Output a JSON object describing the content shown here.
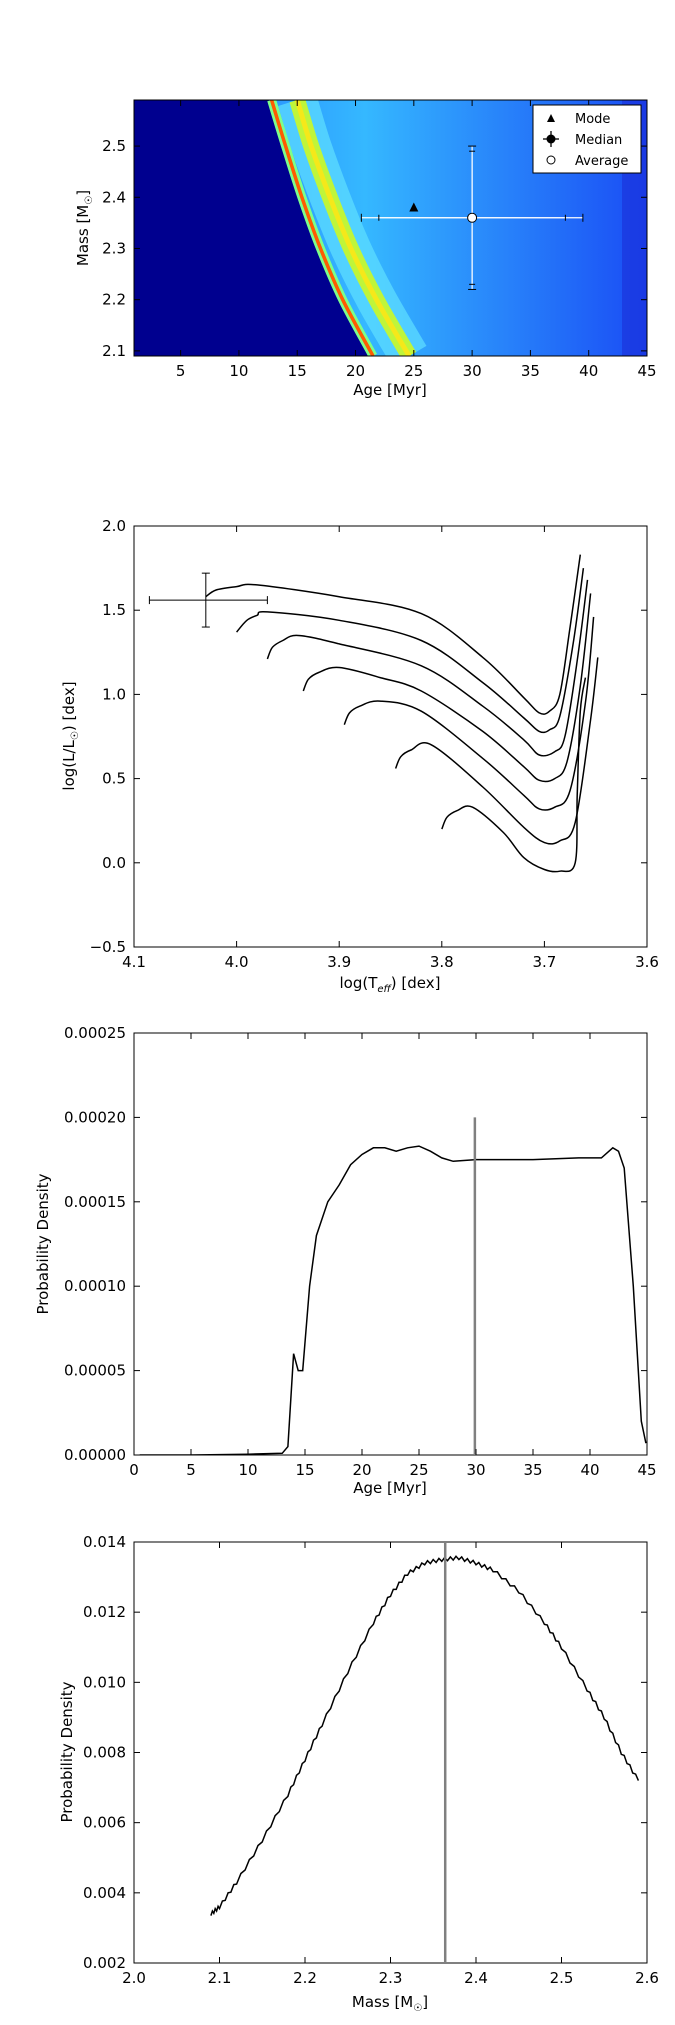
{
  "chart_data": [
    {
      "type": "heatmap",
      "xlabel": "Age [Myr]",
      "ylabel_main": "Mass [M",
      "ylabel_sub": "☉",
      "ylabel_end": "]",
      "xlim": [
        1,
        45
      ],
      "ylim": [
        2.09,
        2.59
      ],
      "xticks": [
        5,
        10,
        15,
        20,
        25,
        30,
        35,
        40,
        45
      ],
      "yticks": [
        2.1,
        2.2,
        2.3,
        2.4,
        2.5
      ],
      "legend_position": "top-right",
      "legend": [
        {
          "marker": "triangle",
          "label": "Mode"
        },
        {
          "marker": "errorbar-dot",
          "label": "Median"
        },
        {
          "marker": "open-circle",
          "label": "Average"
        }
      ],
      "mode": {
        "x": 25,
        "y": 2.38
      },
      "median": {
        "x": 30,
        "y": 2.36,
        "x_err": [
          8,
          8
        ],
        "y_err": [
          0.13,
          0.13
        ]
      },
      "average": {
        "x": 30,
        "y": 2.36,
        "x_err": [
          9.5,
          9.5
        ],
        "y_err": [
          0.14,
          0.14
        ]
      },
      "ridges": [
        {
          "name": "narrow",
          "points": [
            [
              12.8,
              2.59
            ],
            [
              14.0,
              2.5
            ],
            [
              15.4,
              2.4
            ],
            [
              17.0,
              2.3
            ],
            [
              18.9,
              2.2
            ],
            [
              21.5,
              2.09
            ]
          ]
        },
        {
          "name": "broad",
          "points": [
            [
              15.0,
              2.59
            ],
            [
              16.2,
              2.5
            ],
            [
              17.8,
              2.4
            ],
            [
              19.6,
              2.3
            ],
            [
              21.8,
              2.2
            ],
            [
              24.6,
              2.09
            ]
          ]
        }
      ]
    },
    {
      "type": "line",
      "xlabel_main": "log(T",
      "xlabel_sub": "eff",
      "xlabel_end": ") [dex]",
      "ylabel_main": "log(L/L",
      "ylabel_sub": "☉",
      "ylabel_end": ") [dex]",
      "xlim": [
        4.1,
        3.6
      ],
      "ylim": [
        -0.5,
        2.0
      ],
      "xticks": [
        4.1,
        4.0,
        3.9,
        3.8,
        3.7,
        3.6
      ],
      "ytick_labels": [
        "−0.5",
        "0.0",
        "0.5",
        "1.0",
        "1.5",
        "2.0"
      ],
      "ytick_values": [
        -0.5,
        0.0,
        0.5,
        1.0,
        1.5,
        2.0
      ],
      "errorbar": {
        "x": 4.03,
        "y": 1.56,
        "x_lo": 4.085,
        "x_hi": 3.97,
        "y_lo": 1.4,
        "y_hi": 1.72
      },
      "series": [
        {
          "points": [
            [
              4.03,
              1.58
            ],
            [
              4.02,
              1.62
            ],
            [
              4.0,
              1.64
            ],
            [
              3.98,
              1.65
            ],
            [
              3.9,
              1.58
            ],
            [
              3.82,
              1.48
            ],
            [
              3.76,
              1.22
            ],
            [
              3.72,
              0.98
            ],
            [
              3.705,
              0.89
            ],
            [
              3.695,
              0.9
            ],
            [
              3.685,
              1.0
            ],
            [
              3.675,
              1.4
            ],
            [
              3.665,
              1.83
            ]
          ]
        },
        {
          "points": [
            [
              4.0,
              1.37
            ],
            [
              3.99,
              1.44
            ],
            [
              3.98,
              1.47
            ],
            [
              3.97,
              1.49
            ],
            [
              3.9,
              1.44
            ],
            [
              3.82,
              1.32
            ],
            [
              3.76,
              1.07
            ],
            [
              3.72,
              0.86
            ],
            [
              3.705,
              0.78
            ],
            [
              3.695,
              0.79
            ],
            [
              3.685,
              0.87
            ],
            [
              3.672,
              1.3
            ],
            [
              3.662,
              1.75
            ]
          ]
        },
        {
          "points": [
            [
              3.97,
              1.21
            ],
            [
              3.965,
              1.28
            ],
            [
              3.955,
              1.32
            ],
            [
              3.94,
              1.35
            ],
            [
              3.9,
              1.3
            ],
            [
              3.82,
              1.17
            ],
            [
              3.76,
              0.93
            ],
            [
              3.72,
              0.73
            ],
            [
              3.705,
              0.64
            ],
            [
              3.69,
              0.66
            ],
            [
              3.68,
              0.75
            ],
            [
              3.668,
              1.2
            ],
            [
              3.658,
              1.68
            ]
          ]
        },
        {
          "points": [
            [
              3.935,
              1.02
            ],
            [
              3.93,
              1.09
            ],
            [
              3.92,
              1.13
            ],
            [
              3.9,
              1.16
            ],
            [
              3.86,
              1.1
            ],
            [
              3.82,
              1.02
            ],
            [
              3.76,
              0.78
            ],
            [
              3.72,
              0.57
            ],
            [
              3.705,
              0.49
            ],
            [
              3.69,
              0.5
            ],
            [
              3.678,
              0.6
            ],
            [
              3.665,
              1.05
            ],
            [
              3.655,
              1.6
            ]
          ]
        },
        {
          "points": [
            [
              3.895,
              0.82
            ],
            [
              3.89,
              0.89
            ],
            [
              3.88,
              0.93
            ],
            [
              3.86,
              0.96
            ],
            [
              3.82,
              0.9
            ],
            [
              3.76,
              0.62
            ],
            [
              3.72,
              0.4
            ],
            [
              3.705,
              0.32
            ],
            [
              3.69,
              0.33
            ],
            [
              3.675,
              0.43
            ],
            [
              3.66,
              0.95
            ],
            [
              3.652,
              1.46
            ]
          ]
        },
        {
          "points": [
            [
              3.845,
              0.56
            ],
            [
              3.84,
              0.63
            ],
            [
              3.83,
              0.67
            ],
            [
              3.81,
              0.7
            ],
            [
              3.76,
              0.45
            ],
            [
              3.72,
              0.21
            ],
            [
              3.7,
              0.12
            ],
            [
              3.685,
              0.13
            ],
            [
              3.67,
              0.24
            ],
            [
              3.655,
              0.85
            ],
            [
              3.648,
              1.22
            ]
          ]
        },
        {
          "points": [
            [
              3.8,
              0.2
            ],
            [
              3.795,
              0.27
            ],
            [
              3.785,
              0.31
            ],
            [
              3.77,
              0.33
            ],
            [
              3.74,
              0.18
            ],
            [
              3.72,
              0.03
            ],
            [
              3.7,
              -0.04
            ],
            [
              3.685,
              -0.05
            ],
            [
              3.67,
              0.0
            ],
            [
              3.668,
              0.4
            ],
            [
              3.665,
              0.9
            ],
            [
              3.66,
              1.1
            ]
          ]
        }
      ]
    },
    {
      "type": "line",
      "xlabel": "Age [Myr]",
      "ylabel": "Probability Density",
      "xlim": [
        0,
        45
      ],
      "ylim": [
        0,
        0.00025
      ],
      "xticks": [
        0,
        5,
        10,
        15,
        20,
        25,
        30,
        35,
        40,
        45
      ],
      "ytick_values": [
        0,
        5e-05,
        0.0001,
        0.00015,
        0.0002,
        0.00025
      ],
      "ytick_labels": [
        "0.00000",
        "0.00005",
        "0.00010",
        "0.00015",
        "0.00020",
        "0.00025"
      ],
      "vline": {
        "x": 29.9,
        "y_top": 0.0002
      },
      "series": [
        {
          "points": [
            [
              0.5,
              0.0
            ],
            [
              5,
              0.0
            ],
            [
              10,
              5e-07
            ],
            [
              13,
              1e-06
            ],
            [
              13.5,
              5e-06
            ],
            [
              14,
              6e-05
            ],
            [
              14.4,
              5e-05
            ],
            [
              14.8,
              5e-05
            ],
            [
              15.4,
              0.0001
            ],
            [
              16,
              0.00013
            ],
            [
              17,
              0.00015
            ],
            [
              18,
              0.00016
            ],
            [
              19,
              0.000172
            ],
            [
              20,
              0.000178
            ],
            [
              21,
              0.000182
            ],
            [
              22,
              0.000182
            ],
            [
              23,
              0.00018
            ],
            [
              24,
              0.000182
            ],
            [
              25,
              0.000183
            ],
            [
              26,
              0.00018
            ],
            [
              27,
              0.000176
            ],
            [
              28,
              0.000174
            ],
            [
              30,
              0.000175
            ],
            [
              35,
              0.000175
            ],
            [
              39,
              0.000176
            ],
            [
              41,
              0.000176
            ],
            [
              42,
              0.000182
            ],
            [
              42.5,
              0.00018
            ],
            [
              43,
              0.00017
            ],
            [
              43.8,
              0.0001
            ],
            [
              44.5,
              2e-05
            ],
            [
              44.9,
              7e-06
            ]
          ]
        }
      ]
    },
    {
      "type": "line",
      "xlabel_main": "Mass [M",
      "xlabel_sub": "☉",
      "xlabel_end": "]",
      "ylabel": "Probability Density",
      "xlim": [
        2.0,
        2.6
      ],
      "ylim": [
        0.002,
        0.014
      ],
      "xticks": [
        2.0,
        2.1,
        2.2,
        2.3,
        2.4,
        2.5,
        2.6
      ],
      "ytick_values": [
        0.002,
        0.004,
        0.006,
        0.008,
        0.01,
        0.012,
        0.014
      ],
      "ytick_labels": [
        "0.002",
        "0.004",
        "0.006",
        "0.008",
        "0.010",
        "0.012",
        "0.014"
      ],
      "vline": {
        "x": 2.364
      },
      "series": [
        {
          "points": [
            [
              2.09,
              0.0034
            ],
            [
              2.1,
              0.0036
            ],
            [
              2.12,
              0.0043
            ],
            [
              2.15,
              0.0055
            ],
            [
              2.18,
              0.0068
            ],
            [
              2.2,
              0.0078
            ],
            [
              2.22,
              0.0088
            ],
            [
              2.25,
              0.0103
            ],
            [
              2.28,
              0.0117
            ],
            [
              2.3,
              0.0125
            ],
            [
              2.32,
              0.0131
            ],
            [
              2.34,
              0.0134
            ],
            [
              2.36,
              0.0135
            ],
            [
              2.38,
              0.01355
            ],
            [
              2.4,
              0.0134
            ],
            [
              2.42,
              0.0132
            ],
            [
              2.45,
              0.0126
            ],
            [
              2.48,
              0.0117
            ],
            [
              2.5,
              0.011
            ],
            [
              2.53,
              0.0098
            ],
            [
              2.55,
              0.009
            ],
            [
              2.57,
              0.008
            ],
            [
              2.59,
              0.0072
            ]
          ]
        }
      ]
    }
  ]
}
